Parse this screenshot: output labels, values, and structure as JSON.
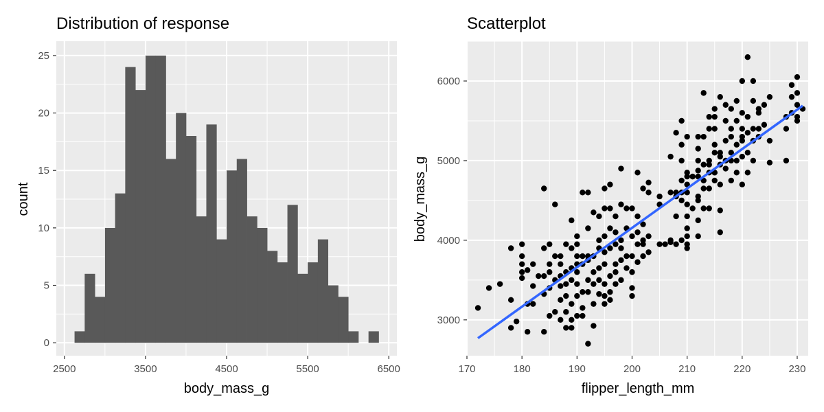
{
  "chart_data": [
    {
      "type": "bar",
      "subtype": "histogram",
      "title": "Distribution of response",
      "xlabel": "body_mass_g",
      "ylabel": "count",
      "xlim": [
        2500,
        6500
      ],
      "ylim": [
        0,
        25
      ],
      "x_ticks": [
        2500,
        3500,
        4500,
        5500,
        6500
      ],
      "y_ticks": [
        0,
        5,
        10,
        15,
        20,
        25
      ],
      "x_tick_labels": [
        "2500",
        "3500",
        "4500",
        "5500",
        "6500"
      ],
      "y_tick_labels": [
        "0",
        "5",
        "10",
        "15",
        "20",
        "25"
      ],
      "bin_width": 125,
      "bin_start": 2625,
      "values": [
        1,
        6,
        4,
        10,
        13,
        24,
        22,
        25,
        25,
        16,
        20,
        18,
        11,
        19,
        9,
        15,
        16,
        11,
        10,
        8,
        7,
        12,
        6,
        7,
        9,
        5,
        4,
        1,
        0,
        1
      ],
      "bar_color": "#595959",
      "panel_bg": "#ebebeb",
      "grid": true
    },
    {
      "type": "scatter",
      "title": "Scatterplot",
      "xlabel": "flipper_length_mm",
      "ylabel": "body_mass_g",
      "xlim": [
        170,
        232
      ],
      "ylim": [
        2550,
        6500
      ],
      "x_ticks": [
        170,
        180,
        190,
        200,
        210,
        220,
        230
      ],
      "y_ticks": [
        3000,
        4000,
        5000,
        6000
      ],
      "x_tick_labels": [
        "170",
        "180",
        "190",
        "200",
        "210",
        "220",
        "230"
      ],
      "y_tick_labels": [
        "3000",
        "4000",
        "5000",
        "6000"
      ],
      "point_color": "#000000",
      "line_color": "#3366ff",
      "panel_bg": "#ebebeb",
      "grid": true,
      "trend_line": {
        "x": [
          172,
          231
        ],
        "y": [
          2770,
          5690
        ]
      },
      "points": [
        [
          172,
          3150
        ],
        [
          174,
          3400
        ],
        [
          176,
          3450
        ],
        [
          178,
          3250
        ],
        [
          178,
          3900
        ],
        [
          178,
          2900
        ],
        [
          179,
          2980
        ],
        [
          180,
          3950
        ],
        [
          180,
          3700
        ],
        [
          180,
          3800
        ],
        [
          180,
          3600
        ],
        [
          180,
          3525
        ],
        [
          181,
          3625
        ],
        [
          181,
          3200
        ],
        [
          181,
          2850
        ],
        [
          182,
          3700
        ],
        [
          182,
          3200
        ],
        [
          182,
          3425
        ],
        [
          183,
          3550
        ],
        [
          184,
          3900
        ],
        [
          184,
          4650
        ],
        [
          184,
          3325
        ],
        [
          184,
          3550
        ],
        [
          184,
          2850
        ],
        [
          185,
          3700
        ],
        [
          185,
          3950
        ],
        [
          185,
          3400
        ],
        [
          185,
          3050
        ],
        [
          185,
          3600
        ],
        [
          186,
          3800
        ],
        [
          186,
          4450
        ],
        [
          186,
          3100
        ],
        [
          186,
          3500
        ],
        [
          187,
          3250
        ],
        [
          187,
          3550
        ],
        [
          187,
          3800
        ],
        [
          187,
          3000
        ],
        [
          187,
          3425
        ],
        [
          187,
          3700
        ],
        [
          188,
          3300
        ],
        [
          188,
          3600
        ],
        [
          188,
          3950
        ],
        [
          188,
          3100
        ],
        [
          188,
          3450
        ],
        [
          188,
          2900
        ],
        [
          189,
          3200
        ],
        [
          189,
          3500
        ],
        [
          189,
          3650
        ],
        [
          189,
          3900
        ],
        [
          189,
          4250
        ],
        [
          189,
          3000
        ],
        [
          189,
          2900
        ],
        [
          190,
          3700
        ],
        [
          190,
          3800
        ],
        [
          190,
          4050
        ],
        [
          190,
          3450
        ],
        [
          190,
          3300
        ],
        [
          190,
          3600
        ],
        [
          190,
          3950
        ],
        [
          190,
          3050
        ],
        [
          191,
          3800
        ],
        [
          191,
          4600
        ],
        [
          191,
          3350
        ],
        [
          191,
          3700
        ],
        [
          191,
          3150
        ],
        [
          191,
          3050
        ],
        [
          192,
          3750
        ],
        [
          192,
          4150
        ],
        [
          192,
          3500
        ],
        [
          192,
          3350
        ],
        [
          192,
          2700
        ],
        [
          192,
          3800
        ],
        [
          192,
          4600
        ],
        [
          193,
          3800
        ],
        [
          193,
          4350
        ],
        [
          193,
          3600
        ],
        [
          193,
          3200
        ],
        [
          193,
          3450
        ],
        [
          193,
          2925
        ],
        [
          194,
          4000
        ],
        [
          194,
          3650
        ],
        [
          194,
          3325
        ],
        [
          194,
          3500
        ],
        [
          194,
          3900
        ],
        [
          194,
          4300
        ],
        [
          195,
          3700
        ],
        [
          195,
          4400
        ],
        [
          195,
          3300
        ],
        [
          195,
          3450
        ],
        [
          195,
          4050
        ],
        [
          195,
          4650
        ],
        [
          195,
          3850
        ],
        [
          195,
          3200
        ],
        [
          196,
          4150
        ],
        [
          196,
          3550
        ],
        [
          196,
          3900
        ],
        [
          196,
          4400
        ],
        [
          196,
          3350
        ],
        [
          196,
          4700
        ],
        [
          196,
          3250
        ],
        [
          197,
          3700
        ],
        [
          197,
          4300
        ],
        [
          197,
          3600
        ],
        [
          197,
          3950
        ],
        [
          197,
          3450
        ],
        [
          197,
          4100
        ],
        [
          198,
          3750
        ],
        [
          198,
          4450
        ],
        [
          198,
          3900
        ],
        [
          198,
          3500
        ],
        [
          198,
          4000
        ],
        [
          198,
          4900
        ],
        [
          199,
          4400
        ],
        [
          199,
          3650
        ],
        [
          199,
          4150
        ],
        [
          199,
          3800
        ],
        [
          200,
          3400
        ],
        [
          200,
          3800
        ],
        [
          200,
          4050
        ],
        [
          200,
          3300
        ],
        [
          200,
          4400
        ],
        [
          200,
          3600
        ],
        [
          201,
          3950
        ],
        [
          201,
          4100
        ],
        [
          201,
          3725
        ],
        [
          201,
          4300
        ],
        [
          201,
          4850
        ],
        [
          202,
          3800
        ],
        [
          202,
          4000
        ],
        [
          202,
          3950
        ],
        [
          202,
          4200
        ],
        [
          202,
          4650
        ],
        [
          203,
          4050
        ],
        [
          203,
          4600
        ],
        [
          203,
          4725
        ],
        [
          203,
          3850
        ],
        [
          205,
          4550
        ],
        [
          205,
          4450
        ],
        [
          205,
          3950
        ],
        [
          206,
          3950
        ],
        [
          207,
          4000
        ],
        [
          207,
          5050
        ],
        [
          207,
          4600
        ],
        [
          207,
          3975
        ],
        [
          208,
          4300
        ],
        [
          208,
          4550
        ],
        [
          208,
          5350
        ],
        [
          208,
          4600
        ],
        [
          208,
          3950
        ],
        [
          209,
          4600
        ],
        [
          209,
          5000
        ],
        [
          209,
          5200
        ],
        [
          209,
          4750
        ],
        [
          209,
          4500
        ],
        [
          209,
          4000
        ],
        [
          209,
          5500
        ],
        [
          210,
          4800
        ],
        [
          210,
          4700
        ],
        [
          210,
          4600
        ],
        [
          210,
          4050
        ],
        [
          210,
          3950
        ],
        [
          210,
          4300
        ],
        [
          210,
          4150
        ],
        [
          210,
          5300
        ],
        [
          210,
          4850
        ],
        [
          210,
          4450
        ],
        [
          210,
          3900
        ],
        [
          211,
          4800
        ],
        [
          211,
          4400
        ],
        [
          212,
          4875
        ],
        [
          212,
          5150
        ],
        [
          212,
          4800
        ],
        [
          212,
          4550
        ],
        [
          212,
          5000
        ],
        [
          212,
          5300
        ],
        [
          212,
          4500
        ],
        [
          212,
          4050
        ],
        [
          212,
          4250
        ],
        [
          213,
          4750
        ],
        [
          213,
          4950
        ],
        [
          213,
          5300
        ],
        [
          213,
          4650
        ],
        [
          213,
          5850
        ],
        [
          213,
          4400
        ],
        [
          214,
          4850
        ],
        [
          214,
          5000
        ],
        [
          214,
          4950
        ],
        [
          214,
          5550
        ],
        [
          214,
          4650
        ],
        [
          214,
          4400
        ],
        [
          214,
          5400
        ],
        [
          215,
          5100
        ],
        [
          215,
          5650
        ],
        [
          215,
          4850
        ],
        [
          215,
          4750
        ],
        [
          215,
          5400
        ],
        [
          215,
          5200
        ],
        [
          215,
          4850
        ],
        [
          215,
          5550
        ],
        [
          216,
          5050
        ],
        [
          216,
          4950
        ],
        [
          216,
          4700
        ],
        [
          216,
          4100
        ],
        [
          216,
          5100
        ],
        [
          216,
          5800
        ],
        [
          216,
          4375
        ],
        [
          217,
          5000
        ],
        [
          217,
          5500
        ],
        [
          217,
          5250
        ],
        [
          217,
          4900
        ],
        [
          217,
          5700
        ],
        [
          218,
          5300
        ],
        [
          218,
          4750
        ],
        [
          218,
          5000
        ],
        [
          218,
          5100
        ],
        [
          218,
          5400
        ],
        [
          218,
          5650
        ],
        [
          219,
          5200
        ],
        [
          219,
          4850
        ],
        [
          219,
          5500
        ],
        [
          219,
          5750
        ],
        [
          219,
          5000
        ],
        [
          220,
          5050
        ],
        [
          220,
          5300
        ],
        [
          220,
          4700
        ],
        [
          220,
          5600
        ],
        [
          220,
          5250
        ],
        [
          220,
          6000
        ],
        [
          220,
          5400
        ],
        [
          221,
          5550
        ],
        [
          221,
          5100
        ],
        [
          221,
          6300
        ],
        [
          221,
          5350
        ],
        [
          221,
          4850
        ],
        [
          222,
          5000
        ],
        [
          222,
          5400
        ],
        [
          222,
          5750
        ],
        [
          222,
          6000
        ],
        [
          222,
          5250
        ],
        [
          223,
          5400
        ],
        [
          223,
          5600
        ],
        [
          223,
          5300
        ],
        [
          223,
          5650
        ],
        [
          224,
          5700
        ],
        [
          224,
          5450
        ],
        [
          225,
          5800
        ],
        [
          225,
          5250
        ],
        [
          225,
          4975
        ],
        [
          228,
          5400
        ],
        [
          228,
          5550
        ],
        [
          228,
          5000
        ],
        [
          229,
          5950
        ],
        [
          229,
          5600
        ],
        [
          229,
          5800
        ],
        [
          230,
          5550
        ],
        [
          230,
          5700
        ],
        [
          230,
          6050
        ],
        [
          230,
          5850
        ],
        [
          230,
          5500
        ],
        [
          231,
          5650
        ]
      ]
    }
  ]
}
